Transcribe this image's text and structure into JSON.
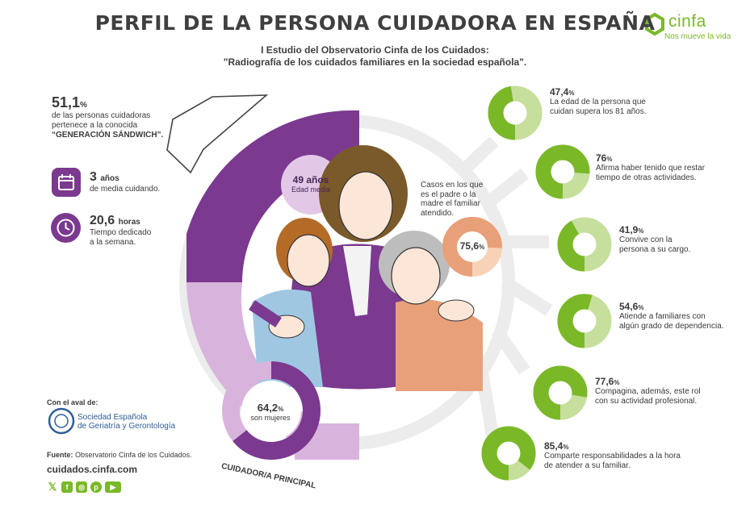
{
  "header": {
    "title": "PERFIL DE LA PERSONA CUIDADORA EN ESPAÑA",
    "subtitle_line1": "I Estudio del Observatorio Cinfa de los Cuidados:",
    "subtitle_line2": "\"Radiografía de los cuidados familiares en la sociedad española\"."
  },
  "brand": {
    "name": "cinfa",
    "tagline": "Nos mueve la vida",
    "color": "#7ab828"
  },
  "colors": {
    "purple": "#7b3990",
    "light_purple": "#d8b4dc",
    "green": "#7ab828",
    "light_green": "#c6df9c",
    "peach": "#e8a079",
    "light_peach": "#f8d2b6"
  },
  "left": {
    "sandwich": {
      "value": "51,1",
      "unit": "%",
      "line1": "de las personas cuidadoras",
      "line2": "pertenece a la conocida",
      "line3": "“GENERACIÓN SÁNDWICH”."
    },
    "years": {
      "icon": "calendar-icon",
      "value": "3",
      "unit": "años",
      "label": "de media cuidando."
    },
    "hours": {
      "icon": "clock-icon",
      "value": "20,6",
      "unit": "horas",
      "line1": "Tiempo dedicado",
      "line2": "a la semana."
    },
    "endorsement_label": "Con el aval de:",
    "endorser_line1": "Sociedad Española",
    "endorser_line2": "de Geriatría y Gerontología",
    "source_label": "Fuente:",
    "source_text": "Observatorio Cinfa de los Cuidados.",
    "website": "cuidados.cinfa.com",
    "social_icons": [
      "x-icon",
      "facebook-icon",
      "instagram-icon",
      "pinterest-icon",
      "youtube-icon"
    ]
  },
  "center": {
    "age": {
      "value": "49 años",
      "label": "Edad media"
    },
    "parent": {
      "line1": "Casos en los que",
      "line2": "es el padre o la",
      "line3": "madre el familiar",
      "line4": "atendido.",
      "value": "75,6",
      "unit": "%",
      "fraction": 0.756
    },
    "women": {
      "value": "64,2",
      "unit": "%",
      "label": "son mujeres",
      "fraction": 0.642
    },
    "arc_label": "CUIDADOR/A PRINCIPAL"
  },
  "stats": [
    {
      "value": "47,4",
      "unit": "%",
      "fraction": 0.474,
      "line1": "La edad de la persona que",
      "line2": "cuidan supera los 81 años."
    },
    {
      "value": "76",
      "unit": "%",
      "fraction": 0.76,
      "line1": "Afirma haber tenido que restar",
      "line2": "tiempo de otras actividades."
    },
    {
      "value": "41,9",
      "unit": "%",
      "fraction": 0.419,
      "line1": "Convive con la",
      "line2": "persona a su cargo."
    },
    {
      "value": "54,6",
      "unit": "%",
      "fraction": 0.546,
      "line1": "Atiende a familiares con",
      "line2": "algún grado de dependencia."
    },
    {
      "value": "77,6",
      "unit": "%",
      "fraction": 0.776,
      "line1": "Compagina, además, este rol",
      "line2": "con su actividad profesional."
    },
    {
      "value": "85,4",
      "unit": "%",
      "fraction": 0.854,
      "line1": "Comparte responsabilidades a la hora",
      "line2": "de atender a su familiar."
    }
  ]
}
